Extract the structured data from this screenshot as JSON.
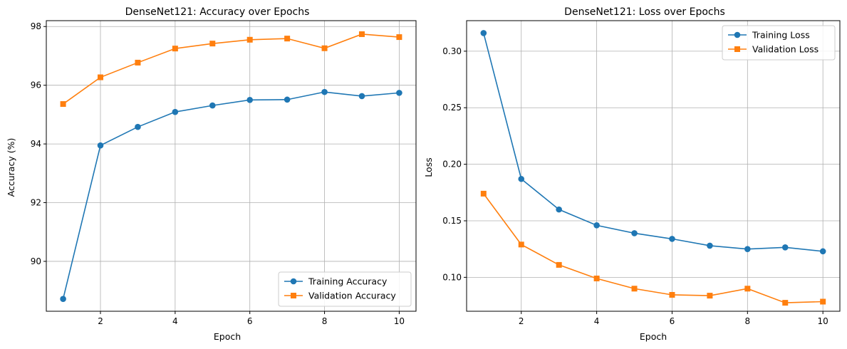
{
  "chart_data": [
    {
      "type": "line",
      "title": "DenseNet121: Accuracy over Epochs",
      "xlabel": "Epoch",
      "ylabel": "Accuracy (%)",
      "xlim": [
        0.55,
        10.45
      ],
      "ylim": [
        88.3,
        98.2
      ],
      "xticks": [
        2,
        4,
        6,
        8,
        10
      ],
      "yticks": [
        90,
        92,
        94,
        96,
        98
      ],
      "grid": true,
      "legend_position": "lower-right",
      "x": [
        1,
        2,
        3,
        4,
        5,
        6,
        7,
        8,
        9,
        10
      ],
      "series": [
        {
          "name": "Training Accuracy",
          "color": "#1f77b4",
          "marker": "circle",
          "values": [
            88.72,
            93.95,
            94.58,
            95.09,
            95.31,
            95.5,
            95.51,
            95.77,
            95.63,
            95.74
          ]
        },
        {
          "name": "Validation Accuracy",
          "color": "#ff7f0e",
          "marker": "square",
          "values": [
            95.36,
            96.27,
            96.77,
            97.25,
            97.42,
            97.55,
            97.59,
            97.26,
            97.74,
            97.64
          ]
        }
      ]
    },
    {
      "type": "line",
      "title": "DenseNet121: Loss over Epochs",
      "xlabel": "Epoch",
      "ylabel": "Loss",
      "xlim": [
        0.55,
        10.45
      ],
      "ylim": [
        0.07,
        0.327
      ],
      "xticks": [
        2,
        4,
        6,
        8,
        10
      ],
      "yticks": [
        0.1,
        0.15,
        0.2,
        0.25,
        0.3
      ],
      "ytick_format": "2dp",
      "grid": true,
      "legend_position": "upper-right",
      "x": [
        1,
        2,
        3,
        4,
        5,
        6,
        7,
        8,
        9,
        10
      ],
      "series": [
        {
          "name": "Training Loss",
          "color": "#1f77b4",
          "marker": "circle",
          "values": [
            0.316,
            0.187,
            0.16,
            0.146,
            0.139,
            0.134,
            0.128,
            0.125,
            0.1265,
            0.123
          ]
        },
        {
          "name": "Validation Loss",
          "color": "#ff7f0e",
          "marker": "square",
          "values": [
            0.174,
            0.129,
            0.111,
            0.099,
            0.09,
            0.0845,
            0.0838,
            0.09,
            0.0775,
            0.0785
          ]
        }
      ]
    }
  ]
}
